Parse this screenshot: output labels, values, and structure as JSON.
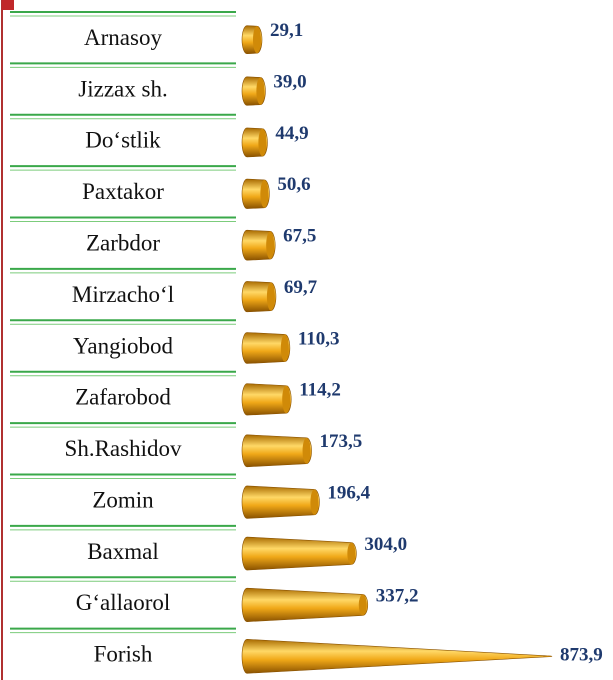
{
  "chart_data": {
    "type": "bar",
    "categories": [
      "Arnasoy",
      "Jizzax sh.",
      "Do‘stlik",
      "Paxtakor",
      "Zarbdor",
      "Mirzacho‘l",
      "Yangiobod",
      "Zafarobod",
      "Sh.Rashidov",
      "Zomin",
      "Baxmal",
      "G‘allaorol",
      "Forish"
    ],
    "values": [
      29.1,
      39.0,
      44.9,
      50.6,
      67.5,
      69.7,
      110.3,
      114.2,
      173.5,
      196.4,
      304.0,
      337.2,
      873.9
    ],
    "value_labels": [
      "29,1",
      "39,0",
      "44,9",
      "50,6",
      "67,5",
      "69,7",
      "110,3",
      "114,2",
      "173,5",
      "196,4",
      "304,0",
      "337,2",
      "873,9"
    ],
    "color": "#f0a818"
  }
}
